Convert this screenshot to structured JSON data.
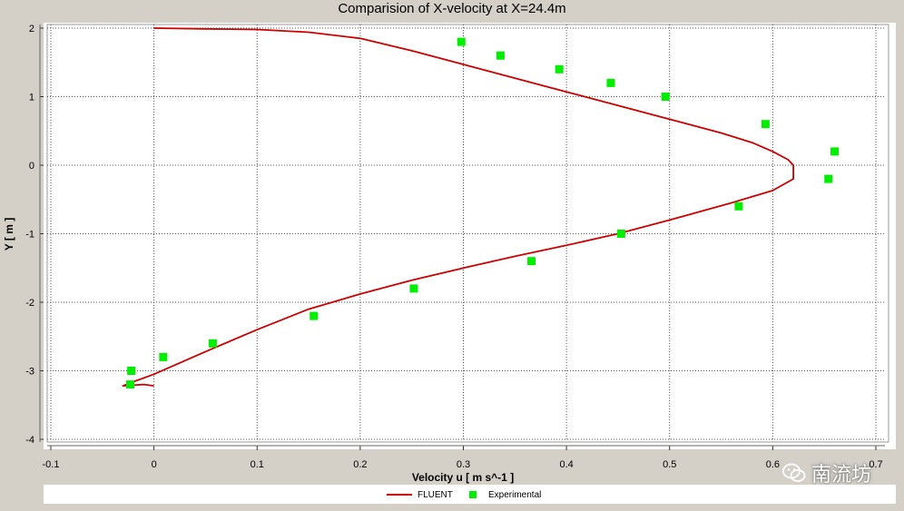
{
  "chart_data": {
    "type": "scatter",
    "title": "Comparision of X-velocity at X=24.4m",
    "xlabel": "Velocity u [ m s^-1 ]",
    "ylabel": "Y [ m ]",
    "xlim": [
      -0.1,
      0.7
    ],
    "ylim": [
      -4,
      2
    ],
    "x_ticks": [
      "-0.1",
      "0",
      "0.1",
      "0.2",
      "0.3",
      "0.4",
      "0.5",
      "0.6",
      "0.7"
    ],
    "y_ticks": [
      "2",
      "1",
      "0",
      "-1",
      "-2",
      "-3",
      "-4"
    ],
    "grid": true,
    "legend_position": "bottom",
    "series": [
      {
        "name": "FLUENT",
        "kind": "line",
        "color": "#cc0000",
        "points": [
          [
            0.0,
            2.0
          ],
          [
            0.05,
            1.99
          ],
          [
            0.1,
            1.98
          ],
          [
            0.15,
            1.94
          ],
          [
            0.2,
            1.85
          ],
          [
            0.25,
            1.67
          ],
          [
            0.3,
            1.47
          ],
          [
            0.35,
            1.27
          ],
          [
            0.4,
            1.07
          ],
          [
            0.45,
            0.87
          ],
          [
            0.5,
            0.67
          ],
          [
            0.55,
            0.47
          ],
          [
            0.58,
            0.33
          ],
          [
            0.6,
            0.2
          ],
          [
            0.615,
            0.08
          ],
          [
            0.62,
            0.0
          ],
          [
            0.62,
            -0.2
          ],
          [
            0.6,
            -0.37
          ],
          [
            0.56,
            -0.55
          ],
          [
            0.5,
            -0.8
          ],
          [
            0.45,
            -1.0
          ],
          [
            0.4,
            -1.17
          ],
          [
            0.35,
            -1.33
          ],
          [
            0.3,
            -1.5
          ],
          [
            0.25,
            -1.68
          ],
          [
            0.2,
            -1.88
          ],
          [
            0.15,
            -2.1
          ],
          [
            0.1,
            -2.4
          ],
          [
            0.05,
            -2.72
          ],
          [
            0.0,
            -3.05
          ],
          [
            -0.02,
            -3.16
          ],
          [
            -0.03,
            -3.22
          ],
          [
            -0.01,
            -3.2
          ],
          [
            0.0,
            -3.22
          ]
        ]
      },
      {
        "name": "Experimental",
        "kind": "scatter",
        "color": "#00ee00",
        "points": [
          [
            0.298,
            1.8
          ],
          [
            0.336,
            1.6
          ],
          [
            0.393,
            1.4
          ],
          [
            0.443,
            1.2
          ],
          [
            0.496,
            1.0
          ],
          [
            0.593,
            0.6
          ],
          [
            0.66,
            0.2
          ],
          [
            0.654,
            -0.2
          ],
          [
            0.567,
            -0.6
          ],
          [
            0.453,
            -1.0
          ],
          [
            0.366,
            -1.4
          ],
          [
            0.252,
            -1.8
          ],
          [
            0.155,
            -2.2
          ],
          [
            0.057,
            -2.6
          ],
          [
            0.009,
            -2.8
          ],
          [
            -0.022,
            -3.0
          ],
          [
            -0.023,
            -3.2
          ]
        ]
      }
    ]
  },
  "watermark": {
    "text": "南流坊",
    "icon": "wechat-icon"
  }
}
